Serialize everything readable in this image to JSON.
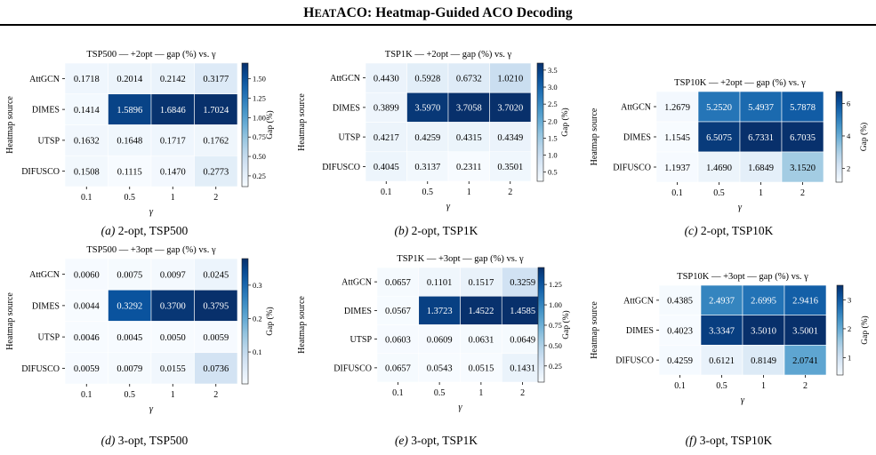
{
  "header": {
    "title_prefix": "H",
    "title_smallcaps": "EAT",
    "title_rest": "ACO: Heatmap-Guided ACO Decoding"
  },
  "chart_data": [
    {
      "type": "heatmap",
      "title": "TSP500 — +2opt — gap (%) vs. γ",
      "caption_label": "(a)",
      "caption_text": "2-opt, TSP500",
      "ylabel": "Heatmap source",
      "xlabel": "γ",
      "colorbar_label": "Gap (%)",
      "x": [
        "0.1",
        "0.5",
        "1",
        "2"
      ],
      "y": [
        "AttGCN",
        "DIMES",
        "UTSP",
        "DIFUSCO"
      ],
      "values": [
        [
          0.1718,
          0.2014,
          0.2142,
          0.3177
        ],
        [
          0.1414,
          1.5896,
          1.6846,
          1.7024
        ],
        [
          0.1632,
          0.1648,
          0.1717,
          0.1762
        ],
        [
          0.1508,
          0.1115,
          0.147,
          0.2773
        ]
      ],
      "cell_labels": [
        [
          "0.1718",
          "0.2014",
          "0.2142",
          "0.3177"
        ],
        [
          "0.1414",
          "1.5896",
          "1.6846",
          "1.7024"
        ],
        [
          "0.1632",
          "0.1648",
          "0.1717",
          "0.1762"
        ],
        [
          "0.1508",
          "0.1115",
          "0.1470",
          "0.2773"
        ]
      ],
      "vmin": 0.1115,
      "vmax": 1.7024,
      "colorbar_ticks": [
        "0.25",
        "0.50",
        "0.75",
        "1.00",
        "1.25",
        "1.50"
      ],
      "colormap": "Blues"
    },
    {
      "type": "heatmap",
      "title": "TSP1K — +2opt — gap (%) vs. γ",
      "caption_label": "(b)",
      "caption_text": "2-opt, TSP1K",
      "ylabel": "Heatmap source",
      "xlabel": "γ",
      "colorbar_label": "Gap (%)",
      "x": [
        "0.1",
        "0.5",
        "1",
        "2"
      ],
      "y": [
        "AttGCN",
        "DIMES",
        "UTSP",
        "DIFUSCO"
      ],
      "values": [
        [
          0.443,
          0.5928,
          0.6732,
          1.021
        ],
        [
          0.3899,
          3.597,
          3.7058,
          3.702
        ],
        [
          0.4217,
          0.4259,
          0.4315,
          0.4349
        ],
        [
          0.4045,
          0.3137,
          0.2311,
          0.3501
        ]
      ],
      "cell_labels": [
        [
          "0.4430",
          "0.5928",
          "0.6732",
          "1.0210"
        ],
        [
          "0.3899",
          "3.5970",
          "3.7058",
          "3.7020"
        ],
        [
          "0.4217",
          "0.4259",
          "0.4315",
          "0.4349"
        ],
        [
          "0.4045",
          "0.3137",
          "0.2311",
          "0.3501"
        ]
      ],
      "vmin": 0.2311,
      "vmax": 3.7058,
      "colorbar_ticks": [
        "0.5",
        "1.0",
        "1.5",
        "2.0",
        "2.5",
        "3.0",
        "3.5"
      ],
      "colormap": "Blues"
    },
    {
      "type": "heatmap",
      "title": "TSP10K — +2opt — gap (%) vs. γ",
      "caption_label": "(c)",
      "caption_text": "2-opt, TSP10K",
      "ylabel": "Heatmap source",
      "xlabel": "γ",
      "colorbar_label": "Gap (%)",
      "x": [
        "0.1",
        "0.5",
        "1",
        "2"
      ],
      "y": [
        "AttGCN",
        "DIMES",
        "DIFUSCO"
      ],
      "values": [
        [
          1.2679,
          5.252,
          5.4937,
          5.7878
        ],
        [
          1.1545,
          6.5075,
          6.7331,
          6.7035
        ],
        [
          1.1937,
          1.469,
          1.6849,
          3.152
        ]
      ],
      "cell_labels": [
        [
          "1.2679",
          "5.2520",
          "5.4937",
          "5.7878"
        ],
        [
          "1.1545",
          "6.5075",
          "6.7331",
          "6.7035"
        ],
        [
          "1.1937",
          "1.4690",
          "1.6849",
          "3.1520"
        ]
      ],
      "vmin": 1.1545,
      "vmax": 6.7331,
      "colorbar_ticks": [
        "2",
        "4",
        "6"
      ],
      "colormap": "Blues"
    },
    {
      "type": "heatmap",
      "title": "TSP500 — +3opt — gap (%) vs. γ",
      "caption_label": "(d)",
      "caption_text": "3-opt, TSP500",
      "ylabel": "Heatmap source",
      "xlabel": "γ",
      "colorbar_label": "Gap (%)",
      "x": [
        "0.1",
        "0.5",
        "1",
        "2"
      ],
      "y": [
        "AttGCN",
        "DIMES",
        "UTSP",
        "DIFUSCO"
      ],
      "values": [
        [
          0.006,
          0.0075,
          0.0097,
          0.0245
        ],
        [
          0.0044,
          0.3292,
          0.37,
          0.3795
        ],
        [
          0.0046,
          0.0045,
          0.005,
          0.0059
        ],
        [
          0.0059,
          0.0079,
          0.0155,
          0.0736
        ]
      ],
      "cell_labels": [
        [
          "0.0060",
          "0.0075",
          "0.0097",
          "0.0245"
        ],
        [
          "0.0044",
          "0.3292",
          "0.3700",
          "0.3795"
        ],
        [
          "0.0046",
          "0.0045",
          "0.0050",
          "0.0059"
        ],
        [
          "0.0059",
          "0.0079",
          "0.0155",
          "0.0736"
        ]
      ],
      "vmin": 0.0044,
      "vmax": 0.3795,
      "colorbar_ticks": [
        "0.1",
        "0.2",
        "0.3"
      ],
      "colormap": "Blues"
    },
    {
      "type": "heatmap",
      "title": "TSP1K — +3opt — gap (%) vs. γ",
      "caption_label": "(e)",
      "caption_text": "3-opt, TSP1K",
      "ylabel": "Heatmap source",
      "xlabel": "γ",
      "colorbar_label": "Gap (%)",
      "x": [
        "0.1",
        "0.5",
        "1",
        "2"
      ],
      "y": [
        "AttGCN",
        "DIMES",
        "UTSP",
        "DIFUSCO"
      ],
      "values": [
        [
          0.0657,
          0.1101,
          0.1517,
          0.3259
        ],
        [
          0.0567,
          1.3723,
          1.4522,
          1.4585
        ],
        [
          0.0603,
          0.0609,
          0.0631,
          0.0649
        ],
        [
          0.0657,
          0.0543,
          0.0515,
          0.1431
        ]
      ],
      "cell_labels": [
        [
          "0.0657",
          "0.1101",
          "0.1517",
          "0.3259"
        ],
        [
          "0.0567",
          "1.3723",
          "1.4522",
          "1.4585"
        ],
        [
          "0.0603",
          "0.0609",
          "0.0631",
          "0.0649"
        ],
        [
          "0.0657",
          "0.0543",
          "0.0515",
          "0.1431"
        ]
      ],
      "vmin": 0.0515,
      "vmax": 1.4585,
      "colorbar_ticks": [
        "0.25",
        "0.50",
        "0.75",
        "1.00",
        "1.25"
      ],
      "colormap": "Blues"
    },
    {
      "type": "heatmap",
      "title": "TSP10K — +3opt — gap (%) vs. γ",
      "caption_label": "(f)",
      "caption_text": "3-opt, TSP10K",
      "ylabel": "Heatmap source",
      "xlabel": "γ",
      "colorbar_label": "Gap (%)",
      "x": [
        "0.1",
        "0.5",
        "1",
        "2"
      ],
      "y": [
        "AttGCN",
        "DIMES",
        "DIFUSCO"
      ],
      "values": [
        [
          0.4385,
          2.4937,
          2.6995,
          2.9416
        ],
        [
          0.4023,
          3.3347,
          3.501,
          3.5001
        ],
        [
          0.4259,
          0.6121,
          0.8149,
          2.0741
        ]
      ],
      "cell_labels": [
        [
          "0.4385",
          "2.4937",
          "2.6995",
          "2.9416"
        ],
        [
          "0.4023",
          "3.3347",
          "3.5010",
          "3.5001"
        ],
        [
          "0.4259",
          "0.6121",
          "0.8149",
          "2.0741"
        ]
      ],
      "vmin": 0.4023,
      "vmax": 3.501,
      "colorbar_ticks": [
        "1",
        "2",
        "3"
      ],
      "colormap": "Blues"
    }
  ]
}
